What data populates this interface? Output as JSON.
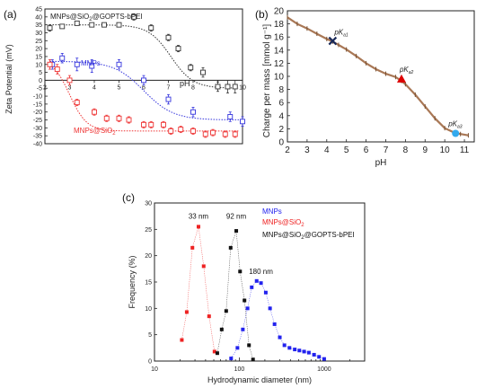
{
  "panels": {
    "a": {
      "label": "(a)",
      "ylabel": "Zeta Potential (mV)",
      "xlabel": "pH",
      "annotations": [
        {
          "text": "MNPs@SiO2@GOPTS-bPEI",
          "color": "#222222"
        },
        {
          "text": "MNPs",
          "color": "#3333dd"
        },
        {
          "text": "MNPs@SiO2",
          "color": "#ee3333"
        }
      ]
    },
    "b": {
      "label": "(b)",
      "ylabel": "Charge per mass [mmol g⁻¹]",
      "xlabel": "pH",
      "pka_labels": [
        "pKa1",
        "pKa2",
        "pKa3"
      ]
    },
    "c": {
      "label": "(c)",
      "ylabel": "Frequency (%)",
      "xlabel": "Hydrodynamic diameter (nm)",
      "legend": [
        {
          "text": "MNPs",
          "color": "#2222ee"
        },
        {
          "text": "MNPs@SiO2",
          "color": "#ee2222"
        },
        {
          "text": "MNPs@SiO2@GOPTS-bPEI",
          "color": "#111111"
        }
      ],
      "peak_labels": [
        "33 nm",
        "92 nm",
        "180 nm"
      ]
    }
  },
  "chart_data": [
    {
      "type": "scatter",
      "title": "",
      "xlabel": "pH",
      "ylabel": "Zeta Potential (mV)",
      "xlim": [
        2,
        10
      ],
      "ylim": [
        -40,
        45
      ],
      "xticks": [
        2,
        3,
        4,
        5,
        6,
        7,
        8,
        9,
        10
      ],
      "yticks": [
        -40,
        -35,
        -30,
        -25,
        -20,
        -15,
        -10,
        -5,
        0,
        5,
        10,
        15,
        20,
        25,
        30,
        35,
        40,
        45
      ],
      "series": [
        {
          "name": "MNPs@SiO2@GOPTS-bPEI",
          "color": "#333333",
          "x": [
            2.2,
            2.7,
            3.3,
            3.9,
            4.4,
            5.0,
            5.6,
            6.3,
            7.0,
            7.4,
            7.9,
            8.4,
            9.0,
            9.4,
            9.7
          ],
          "y": [
            33,
            34,
            36,
            35,
            35,
            35,
            40,
            33,
            27,
            20,
            8,
            5,
            -4,
            -4,
            -4
          ],
          "err": [
            2,
            1,
            1,
            1,
            1,
            1,
            2,
            2,
            2,
            2,
            2,
            3,
            3,
            4,
            4
          ]
        },
        {
          "name": "MNPs",
          "color": "#3333dd",
          "x": [
            2.3,
            2.7,
            3.3,
            3.9,
            5.0,
            6.0,
            7.0,
            8.0,
            9.5,
            10.0
          ],
          "y": [
            10,
            14,
            10,
            9,
            10,
            0,
            -12,
            -20,
            -23,
            -26
          ],
          "err": [
            3,
            3,
            4,
            4,
            3,
            3,
            3,
            3,
            3,
            3
          ]
        },
        {
          "name": "MNPs@SiO2",
          "color": "#ee3333",
          "x": [
            2.2,
            2.5,
            3.0,
            3.3,
            4.0,
            4.5,
            5.0,
            5.4,
            6.0,
            6.3,
            6.8,
            7.1,
            7.5,
            8.0,
            8.5,
            8.8,
            9.3,
            9.7
          ],
          "y": [
            10,
            7,
            0,
            -14,
            -20,
            -24,
            -24,
            -25,
            -28,
            -28,
            -28,
            -32,
            -31,
            -32,
            -34,
            -33,
            -34,
            -34
          ],
          "err": [
            3,
            3,
            3,
            2,
            2,
            2,
            2,
            2,
            2,
            2,
            2,
            2,
            2,
            2,
            2,
            2,
            2,
            2
          ]
        }
      ]
    },
    {
      "type": "line",
      "title": "",
      "xlabel": "pH",
      "ylabel": "Charge per mass [mmol g⁻¹]",
      "xlim": [
        2,
        11.5
      ],
      "ylim": [
        0,
        20
      ],
      "xticks": [
        2,
        3,
        4,
        5,
        6,
        7,
        8,
        9,
        10,
        11
      ],
      "yticks": [
        0,
        2,
        4,
        6,
        8,
        10,
        12,
        14,
        16,
        18,
        20
      ],
      "series": [
        {
          "name": "",
          "color": "#a97856",
          "x": [
            2.0,
            2.5,
            3.0,
            3.5,
            4.0,
            4.3,
            4.6,
            5.0,
            5.5,
            6.0,
            6.5,
            7.0,
            7.5,
            7.8,
            8.0,
            8.5,
            9.0,
            9.5,
            10.0,
            10.5,
            10.8,
            11.2
          ],
          "y": [
            19,
            18,
            17.3,
            16.5,
            15.7,
            15.3,
            14.8,
            14.1,
            13.1,
            12.0,
            11.1,
            10.4,
            9.9,
            9.3,
            8.8,
            7.2,
            5.4,
            3.6,
            2.1,
            1.4,
            1.2,
            1.0
          ]
        }
      ],
      "markers": [
        {
          "label": "pKa1",
          "x": 4.3,
          "y": 15.4,
          "color": "#1a2a5a",
          "shape": "x"
        },
        {
          "label": "pKa2",
          "x": 7.8,
          "y": 9.6,
          "color": "#dd0000",
          "shape": "triangle"
        },
        {
          "label": "pKa3",
          "x": 10.55,
          "y": 1.3,
          "color": "#33aaee",
          "shape": "circle"
        }
      ]
    },
    {
      "type": "scatter",
      "title": "",
      "xlabel": "Hydrodynamic diameter (nm)",
      "ylabel": "Frequency (%)",
      "xscale": "log",
      "xlim": [
        10,
        3000
      ],
      "ylim": [
        0,
        30
      ],
      "xticks": [
        10,
        100,
        1000
      ],
      "yticks": [
        0,
        5,
        10,
        15,
        20,
        25,
        30
      ],
      "series": [
        {
          "name": "MNPs",
          "color": "#2222ee",
          "x": [
            80,
            95,
            110,
            125,
            140,
            160,
            180,
            205,
            230,
            260,
            300,
            340,
            390,
            450,
            510,
            580,
            660,
            760,
            870,
            1000
          ],
          "y": [
            0.5,
            2.5,
            6,
            10,
            14,
            15.2,
            14.8,
            13,
            10,
            7,
            4.5,
            3,
            2.5,
            2.2,
            2,
            1.8,
            1.6,
            1.2,
            0.8,
            0.4
          ]
        },
        {
          "name": "MNPs@SiO2",
          "color": "#ee2222",
          "x": [
            21,
            24,
            28,
            33,
            38,
            44,
            51
          ],
          "y": [
            4,
            9.3,
            21.5,
            25.5,
            18,
            8.5,
            1.8
          ]
        },
        {
          "name": "MNPs@SiO2@GOPTS-bPEI",
          "color": "#111111",
          "x": [
            55,
            62,
            70,
            79,
            92,
            102,
            115,
            130,
            145
          ],
          "y": [
            1.5,
            6,
            9.5,
            21.5,
            24.7,
            17,
            11.5,
            3,
            0.3
          ]
        }
      ],
      "peak_labels": [
        {
          "text": "33 nm",
          "x": 33
        },
        {
          "text": "92 nm",
          "x": 92
        },
        {
          "text": "180 nm",
          "x": 180
        }
      ]
    }
  ]
}
